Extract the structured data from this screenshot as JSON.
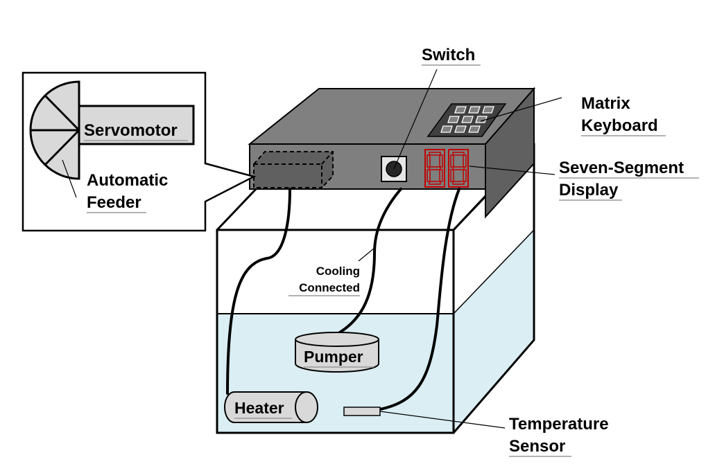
{
  "labels": {
    "switch": "Switch",
    "matrix_keyboard_line1": "Matrix",
    "matrix_keyboard_line2": "Keyboard",
    "seven_segment_line1": "Seven-Segment",
    "seven_segment_line2": "Display",
    "servomotor": "Servomotor",
    "automatic_feeder_line1": "Automatic",
    "automatic_feeder_line2": "Feeder",
    "cooling_line1": "Cooling",
    "cooling_line2": "Connected",
    "pumper": "Pumper",
    "heater": "Heater",
    "temperature_sensor_line1": "Temperature",
    "temperature_sensor_line2": "Sensor"
  },
  "colors": {
    "controller_top": "#808080",
    "controller_dark": "#606060",
    "controller_front": "#7f7f7f",
    "water": "#daeef3",
    "component_fill": "#d9d9d9",
    "segment_red": "#c00000"
  }
}
